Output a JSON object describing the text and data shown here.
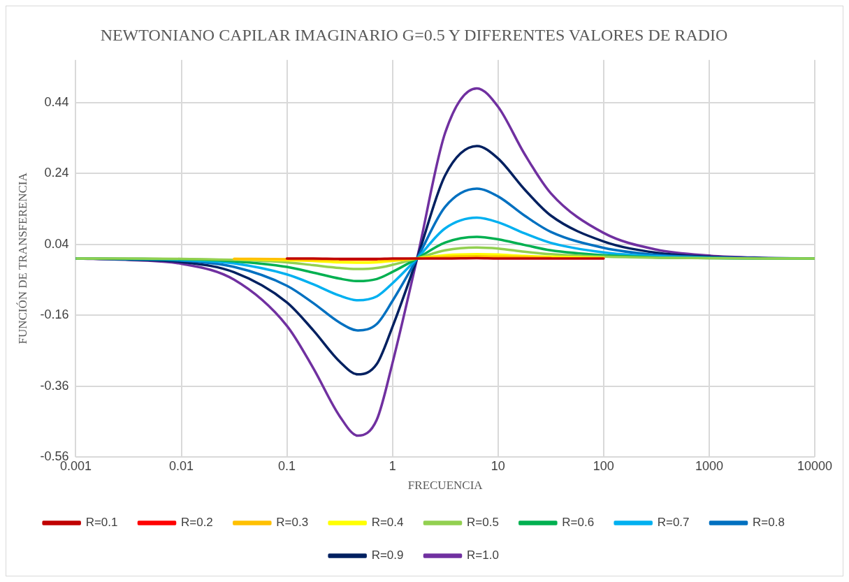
{
  "chart_data": {
    "type": "line",
    "title": "NEWTONIANO CAPILAR IMAGINARIO G=0.5 Y DIFERENTES VALORES DE RADIO",
    "xlabel": "FRECUENCIA",
    "ylabel": "FUNCIÓN DE TRANSFERENCIA",
    "log": "x",
    "grid": true,
    "legend": "bottom",
    "marker": "none",
    "line_style": "solid",
    "x": [
      0.001,
      0.00316,
      0.01,
      0.0316,
      0.1,
      0.178,
      0.316,
      0.47,
      0.71,
      1,
      1.71,
      3.16,
      6.3,
      10,
      17.8,
      31.6,
      100,
      316,
      1000,
      3162,
      10000
    ],
    "xlim": [
      0.001,
      10000
    ],
    "xticks": [
      0.001,
      0.01,
      0.1,
      1,
      10,
      100,
      1000,
      10000
    ],
    "ylim": [
      -0.56,
      0.56
    ],
    "yticks": [
      -0.56,
      -0.36,
      -0.16,
      0.04,
      0.24,
      0.44
    ],
    "series": [
      {
        "name": "R=0.1",
        "color": "#c00000",
        "values": [
          null,
          null,
          null,
          null,
          0,
          0,
          -0.001,
          -0.001,
          -0.001,
          0,
          0,
          0,
          0.001,
          0,
          0,
          0,
          0,
          null,
          null,
          null,
          null
        ]
      },
      {
        "name": "R=0.2",
        "color": "#ff0000",
        "values": [
          null,
          null,
          null,
          null,
          null,
          null,
          -0.002,
          null,
          -0.002,
          null,
          null,
          null,
          null,
          null,
          null,
          null,
          null,
          null,
          null,
          null,
          null
        ]
      },
      {
        "name": "R=0.3",
        "color": "#ffc000",
        "values": [
          null,
          null,
          null,
          -0.001,
          -0.002,
          -0.004,
          null,
          null,
          null,
          -0.004,
          0,
          0.004,
          0.006,
          0.005,
          0.004,
          0.002,
          null,
          null,
          null,
          null,
          null
        ]
      },
      {
        "name": "R=0.4",
        "color": "#ffff00",
        "values": [
          null,
          null,
          null,
          -0.001,
          -0.005,
          -0.007,
          -0.011,
          -0.012,
          -0.011,
          -0.007,
          0,
          0.009,
          0.012,
          0.011,
          0.007,
          0.005,
          0.002,
          null,
          null,
          null,
          null
        ]
      },
      {
        "name": "R=0.5",
        "color": "#92d050",
        "values": [
          0,
          0,
          -0.001,
          -0.004,
          -0.011,
          -0.019,
          -0.027,
          -0.03,
          -0.027,
          -0.018,
          0,
          0.023,
          0.031,
          0.028,
          0.019,
          0.012,
          0.005,
          0.002,
          0.001,
          0,
          0
        ]
      },
      {
        "name": "R=0.6",
        "color": "#00b050",
        "values": [
          0,
          -0.001,
          -0.002,
          -0.008,
          -0.024,
          -0.04,
          -0.057,
          -0.064,
          -0.058,
          -0.038,
          0,
          0.045,
          0.061,
          0.054,
          0.038,
          0.023,
          0.009,
          0.003,
          0.001,
          0,
          0
        ]
      },
      {
        "name": "R=0.7",
        "color": "#00b0f0",
        "values": [
          0,
          -0.001,
          -0.004,
          -0.014,
          -0.045,
          -0.073,
          -0.105,
          -0.118,
          -0.107,
          -0.07,
          0,
          0.085,
          0.115,
          0.102,
          0.071,
          0.044,
          0.017,
          0.006,
          0.002,
          0,
          0
        ]
      },
      {
        "name": "R=0.8",
        "color": "#0070c0",
        "values": [
          0,
          -0.002,
          -0.006,
          -0.024,
          -0.077,
          -0.126,
          -0.181,
          -0.203,
          -0.185,
          -0.12,
          0,
          0.146,
          0.197,
          0.175,
          0.121,
          0.075,
          0.03,
          0.01,
          0.003,
          0.001,
          0
        ]
      },
      {
        "name": "R=0.9",
        "color": "#002060",
        "values": [
          0,
          -0.003,
          -0.01,
          -0.039,
          -0.124,
          -0.203,
          -0.291,
          -0.327,
          -0.298,
          -0.193,
          0,
          0.235,
          0.317,
          0.282,
          0.195,
          0.121,
          0.048,
          0.016,
          0.005,
          0.001,
          0
        ]
      },
      {
        "name": "R=1.0",
        "color": "#7030a0",
        "values": [
          0,
          -0.004,
          -0.015,
          -0.06,
          -0.19,
          -0.31,
          -0.445,
          -0.5,
          -0.455,
          -0.295,
          0,
          0.355,
          0.48,
          0.428,
          0.295,
          0.184,
          0.072,
          0.025,
          0.008,
          0.002,
          0
        ]
      }
    ]
  }
}
